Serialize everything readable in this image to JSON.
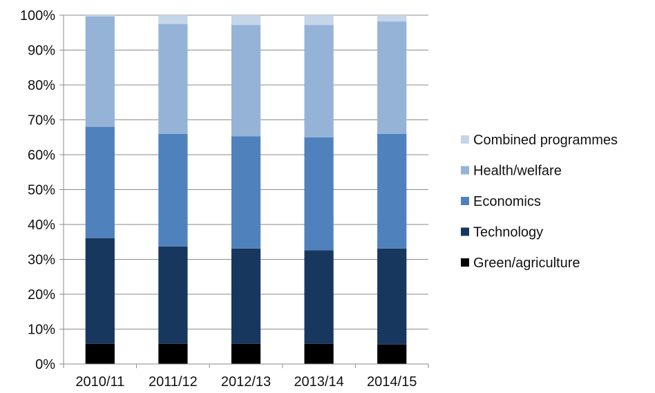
{
  "chart_data": {
    "type": "bar",
    "stacked": true,
    "categories": [
      "2010/11",
      "2011/12",
      "2012/13",
      "2013/14",
      "2014/15"
    ],
    "ylim": [
      0,
      100
    ],
    "yticks": [
      "0%",
      "10%",
      "20%",
      "30%",
      "40%",
      "50%",
      "60%",
      "70%",
      "80%",
      "90%",
      "100%"
    ],
    "grid": true,
    "legend_position": "right",
    "series": [
      {
        "name": "Green/agriculture",
        "color": "#000000",
        "values": [
          5.8,
          5.8,
          5.8,
          5.8,
          5.6
        ]
      },
      {
        "name": "Technology",
        "color": "#17375E",
        "values": [
          30.3,
          27.9,
          27.3,
          26.8,
          27.5
        ]
      },
      {
        "name": "Economics",
        "color": "#4F81BD",
        "values": [
          31.9,
          32.3,
          32.2,
          32.4,
          32.9
        ]
      },
      {
        "name": "Health/welfare",
        "color": "#95B3D7",
        "values": [
          31.6,
          31.5,
          31.9,
          32.2,
          32.2
        ]
      },
      {
        "name": "Combined programmes",
        "color": "#C5D5EA",
        "values": [
          0.4,
          2.5,
          2.8,
          2.8,
          1.8
        ]
      }
    ]
  }
}
